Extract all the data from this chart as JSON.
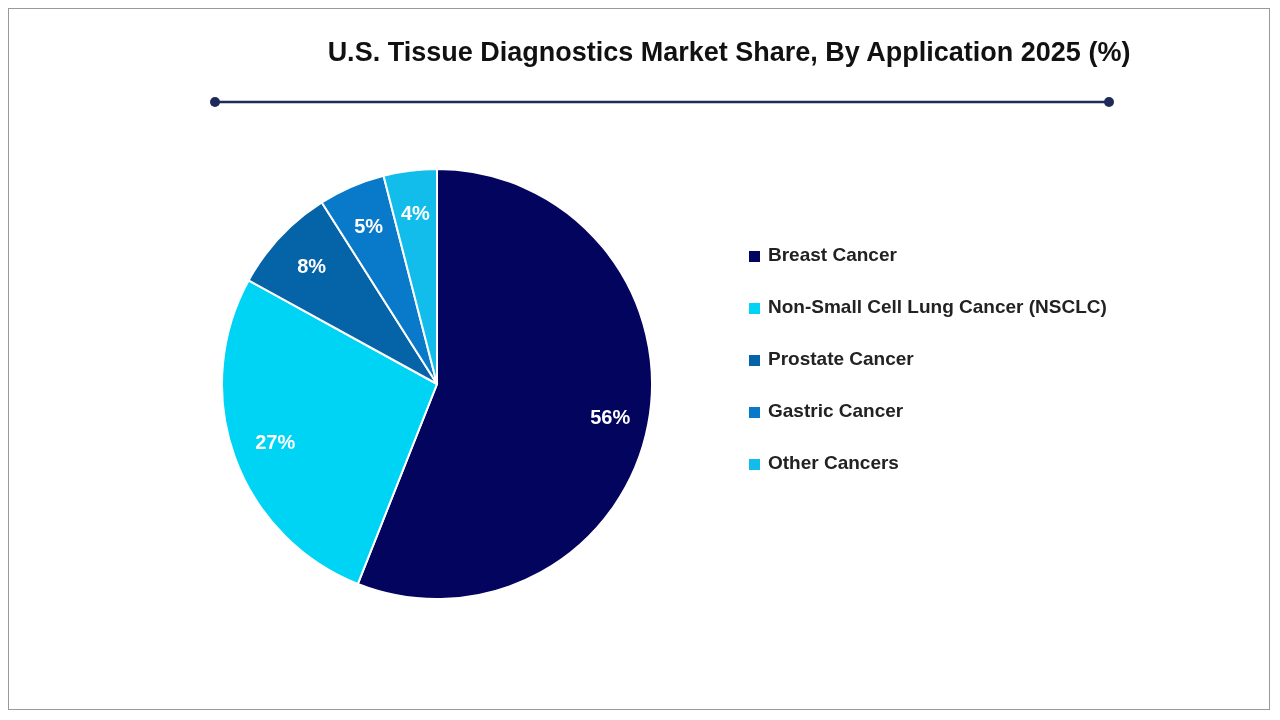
{
  "chart_data": {
    "type": "pie",
    "title": "U.S. Tissue Diagnostics Market Share, By Application 2025 (%)",
    "categories": [
      "Breast Cancer",
      "Non-Small Cell Lung Cancer (NSCLC)",
      "Prostate Cancer",
      "Gastric Cancer",
      "Other Cancers"
    ],
    "values": [
      56,
      27,
      8,
      5,
      4
    ],
    "value_labels": [
      "56%",
      "27%",
      "8%",
      "5%",
      "4%"
    ],
    "colors": [
      "#03045e",
      "#00d4f5",
      "#0563a8",
      "#0979c9",
      "#12bdec"
    ],
    "legend": "right"
  }
}
